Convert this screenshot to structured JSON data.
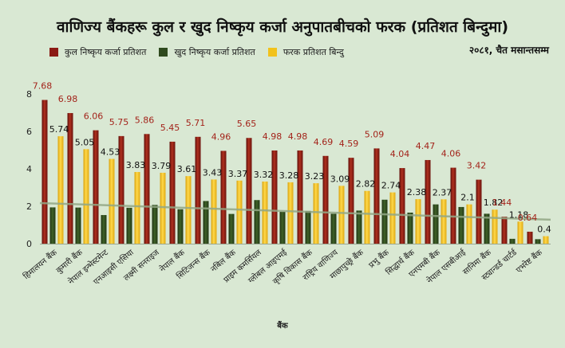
{
  "title": "वाणिज्य बैंकहरू कुल र खुद निष्कृय कर्जा अनुपातबीचको फरक (प्रतिशत बिन्दुमा)",
  "period": "२०८१, चैत मसान्तसम्म",
  "legend": [
    {
      "label": "कुल निष्कृय कर्जा प्रतिशत",
      "color": "#8b1a14"
    },
    {
      "label": "खुद निष्कृय कर्जा प्रतिशत",
      "color": "#2f4a1e"
    },
    {
      "label": "फरक प्रतिशत बिन्दु",
      "color": "#f2c21c"
    }
  ],
  "chart_data": {
    "type": "bar",
    "xlabel": "बैंक",
    "ylabel": "",
    "ylim": [
      0,
      8
    ],
    "yticks": [
      0,
      2,
      4,
      6,
      8
    ],
    "grid": false,
    "categories": [
      "हिमालयन बैंक",
      "कुमारी बैंक",
      "नेपाल इन्भेस्टमेन्ट",
      "एनआइसी एसिया",
      "लक्ष्मी सनराइज",
      "नेपाल बैंक",
      "सिटिजन्स बैंक",
      "नबिल बैंक",
      "प्राइम कमर्सियल",
      "ग्लोबल आइएमई",
      "कृषि विकास बैंक",
      "राष्ट्रिय वाणिज्य",
      "माछापुच्छ्रे बैंक",
      "प्रभु बैंक",
      "सिद्धार्थ बैंक",
      "एनएमबी बैंक",
      "नेपाल एसबीआई",
      "सानिमा बैंक",
      "स्ट्यान्डर्ड चार्टर्ड",
      "एभरेष्ट बैंक"
    ],
    "series": [
      {
        "name": "कुल निष्कृय कर्जा प्रतिशत",
        "color": "#8b1a14",
        "labelColor": "#a3231a",
        "values": [
          7.68,
          6.98,
          6.06,
          5.75,
          5.86,
          5.45,
          5.71,
          4.96,
          5.65,
          4.98,
          4.98,
          4.69,
          4.59,
          5.09,
          4.04,
          4.47,
          4.06,
          3.42,
          1.44,
          0.64
        ],
        "labels": [
          "7.68",
          "6.98",
          "6.06",
          "5.75",
          "5.86",
          "5.45",
          "5.71",
          "4.96",
          "5.65",
          "4.98",
          "4.98",
          "4.69",
          "4.59",
          "5.09",
          "4.04",
          "4.47",
          "4.06",
          "3.42",
          "1.44",
          "0.64"
        ]
      },
      {
        "name": "खुद निष्कृय कर्जा प्रतिशत",
        "color": "#2f4a1e",
        "values": [
          1.94,
          1.93,
          1.53,
          1.92,
          2.07,
          1.84,
          2.28,
          1.59,
          2.33,
          1.7,
          1.75,
          1.6,
          1.77,
          2.35,
          1.66,
          2.1,
          1.96,
          1.6,
          0.26,
          0.24
        ],
        "labels": []
      },
      {
        "name": "फरक प्रतिशत बिन्दु",
        "color": "#f2c21c",
        "labelColor": "#111111",
        "values": [
          5.74,
          5.05,
          4.53,
          3.83,
          3.79,
          3.61,
          3.43,
          3.37,
          3.32,
          3.28,
          3.23,
          3.09,
          2.82,
          2.74,
          2.38,
          2.37,
          2.1,
          1.82,
          1.18,
          0.4
        ],
        "labels": [
          "5.74",
          "5.05",
          "4.53",
          "3.83",
          "3.79",
          "3.61",
          "3.43",
          "3.37",
          "3.32",
          "3.28",
          "3.23",
          "3.09",
          "2.82",
          "2.74",
          "2.38",
          "2.37",
          "2.1",
          "1.82",
          "1.18",
          "0.4"
        ]
      }
    ],
    "trendline": {
      "series": "खुद निष्कृय कर्जा प्रतिशत",
      "color": "#93a886",
      "from": 2.17,
      "to": 1.28
    }
  }
}
